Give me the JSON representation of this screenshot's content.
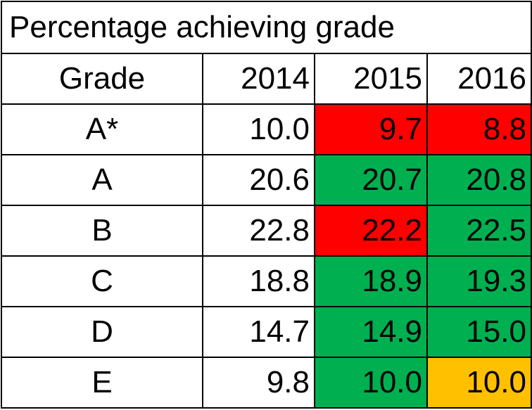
{
  "title": "Percentage achieving grade",
  "columns": [
    "Grade",
    "2014",
    "2015",
    "2016"
  ],
  "colors": {
    "red": "#ff0000",
    "green": "#00b050",
    "amber": "#ffc000",
    "none": "#ffffff"
  },
  "rows": [
    {
      "grade": "A*",
      "v2014": "10.0",
      "v2015": "9.7",
      "v2016": "8.8",
      "c2015": "red",
      "c2016": "red"
    },
    {
      "grade": "A",
      "v2014": "20.6",
      "v2015": "20.7",
      "v2016": "20.8",
      "c2015": "green",
      "c2016": "green"
    },
    {
      "grade": "B",
      "v2014": "22.8",
      "v2015": "22.2",
      "v2016": "22.5",
      "c2015": "red",
      "c2016": "green"
    },
    {
      "grade": "C",
      "v2014": "18.8",
      "v2015": "18.9",
      "v2016": "19.3",
      "c2015": "green",
      "c2016": "green"
    },
    {
      "grade": "D",
      "v2014": "14.7",
      "v2015": "14.9",
      "v2016": "15.0",
      "c2015": "green",
      "c2016": "green"
    },
    {
      "grade": "E",
      "v2014": "9.8",
      "v2015": "10.0",
      "v2016": "10.0",
      "c2015": "green",
      "c2016": "amber"
    }
  ],
  "chart_data": {
    "type": "table",
    "title": "Percentage achieving grade",
    "columns": [
      "Grade",
      "2014",
      "2015",
      "2016"
    ],
    "categories": [
      "A*",
      "A",
      "B",
      "C",
      "D",
      "E"
    ],
    "series": [
      {
        "name": "2014",
        "values": [
          10.0,
          20.6,
          22.8,
          18.8,
          14.7,
          9.8
        ]
      },
      {
        "name": "2015",
        "values": [
          9.7,
          20.7,
          22.2,
          18.9,
          14.9,
          10.0
        ]
      },
      {
        "name": "2016",
        "values": [
          8.8,
          20.8,
          22.5,
          19.3,
          15.0,
          10.0
        ]
      }
    ]
  }
}
